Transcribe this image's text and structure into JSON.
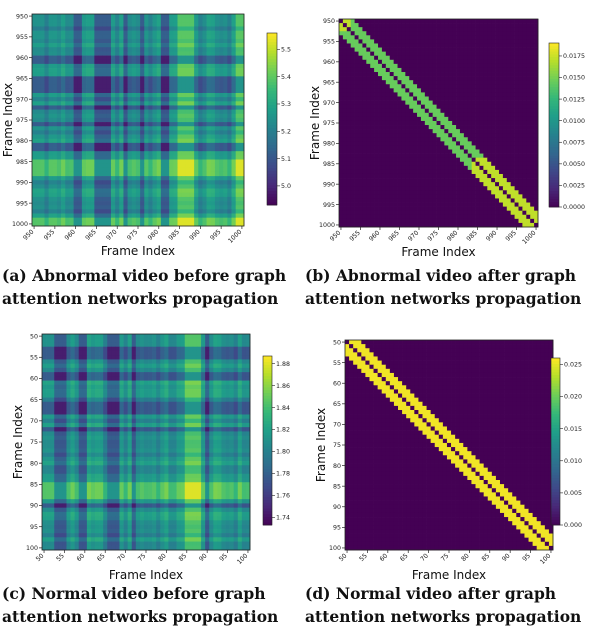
{
  "colors": {
    "viridis": [
      "#440154",
      "#482878",
      "#3e4989",
      "#31688e",
      "#26828e",
      "#1f9e89",
      "#35b779",
      "#6ece58",
      "#b5de2b",
      "#fde725"
    ]
  },
  "panels": [
    {
      "id": "a",
      "caption": "(a) Abnormal video before graph attention networks propagation",
      "chart_data": {
        "type": "heatmap",
        "kind": "similarity",
        "xlabel": "Frame Index",
        "ylabel": "Frame Index",
        "frames": [
          950,
          1000
        ],
        "xticks": [
          "950",
          "955",
          "960",
          "965",
          "970",
          "975",
          "980",
          "985",
          "990",
          "995",
          "1000"
        ],
        "yticks": [
          "950",
          "955",
          "960",
          "965",
          "970",
          "975",
          "980",
          "985",
          "990",
          "995",
          "1000"
        ],
        "colorbar": {
          "min": 4.93,
          "max": 5.56,
          "ticks": [
            "5.0",
            "5.1",
            "5.2",
            "5.3",
            "5.4",
            "5.5"
          ],
          "tick_values": [
            5.0,
            5.1,
            5.2,
            5.3,
            5.4,
            5.5
          ]
        },
        "low_frames": [
          960,
          961,
          965,
          966,
          967,
          968,
          972,
          976,
          981,
          982
        ],
        "high_frames": [
          985,
          986,
          987,
          988,
          999,
          1000
        ]
      }
    },
    {
      "id": "b",
      "caption": "(b) Abnormal video after graph attention networks propagation",
      "chart_data": {
        "type": "heatmap",
        "kind": "band",
        "xlabel": "Frame Index",
        "ylabel": "Frame Index",
        "frames": [
          950,
          1000
        ],
        "xticks": [
          "950",
          "955",
          "960",
          "965",
          "970",
          "975",
          "980",
          "985",
          "990",
          "995",
          "1000"
        ],
        "yticks": [
          "950",
          "955",
          "960",
          "965",
          "970",
          "975",
          "980",
          "985",
          "990",
          "995",
          "1000"
        ],
        "colorbar": {
          "min": 0.0,
          "max": 0.019,
          "ticks": [
            "0.0000",
            "0.0025",
            "0.0050",
            "0.0075",
            "0.0100",
            "0.0125",
            "0.0150",
            "0.0175"
          ],
          "tick_values": [
            0.0,
            0.0025,
            0.005,
            0.0075,
            0.01,
            0.0125,
            0.015,
            0.0175
          ]
        },
        "band_halfwidth": 3,
        "band_value": 0.0145,
        "band_high_value": 0.0172,
        "band_high_ranges": [
          [
            950,
            952
          ],
          [
            984,
            1000
          ]
        ],
        "diagonal_value": 0.0
      }
    },
    {
      "id": "c",
      "caption": "(c) Normal video before graph attention networks propagation",
      "chart_data": {
        "type": "heatmap",
        "kind": "similarity",
        "xlabel": "Frame Index",
        "ylabel": "Frame Index",
        "frames": [
          50,
          100
        ],
        "xticks": [
          "50",
          "55",
          "60",
          "65",
          "70",
          "75",
          "80",
          "85",
          "90",
          "95",
          "100"
        ],
        "yticks": [
          "50",
          "55",
          "60",
          "65",
          "70",
          "75",
          "80",
          "85",
          "90",
          "95",
          "100"
        ],
        "colorbar": {
          "min": 1.733,
          "max": 1.887,
          "ticks": [
            "1.74",
            "1.76",
            "1.78",
            "1.80",
            "1.82",
            "1.84",
            "1.86",
            "1.88"
          ],
          "tick_values": [
            1.74,
            1.76,
            1.78,
            1.8,
            1.82,
            1.84,
            1.86,
            1.88
          ]
        },
        "low_frames": [
          53,
          54,
          55,
          59,
          60,
          66,
          67,
          68,
          72,
          90
        ],
        "high_frames": [
          85,
          86,
          87,
          88
        ]
      }
    },
    {
      "id": "d",
      "caption": "(d) Normal video after graph attention networks propagation",
      "chart_data": {
        "type": "heatmap",
        "kind": "band",
        "xlabel": "Frame Index",
        "ylabel": "Frame Index",
        "frames": [
          50,
          100
        ],
        "xticks": [
          "50",
          "55",
          "60",
          "65",
          "70",
          "75",
          "80",
          "85",
          "90",
          "95",
          "100"
        ],
        "yticks": [
          "50",
          "55",
          "60",
          "65",
          "70",
          "75",
          "80",
          "85",
          "90",
          "95",
          "100"
        ],
        "colorbar": {
          "min": 0.0,
          "max": 0.026,
          "ticks": [
            "0.000",
            "0.005",
            "0.010",
            "0.015",
            "0.020",
            "0.025"
          ],
          "tick_values": [
            0.0,
            0.005,
            0.01,
            0.015,
            0.02,
            0.025
          ]
        },
        "band_halfwidth": 3,
        "band_value": 0.0255,
        "band_high_value": 0.0255,
        "band_high_ranges": [],
        "diagonal_value": 0.0
      }
    }
  ]
}
